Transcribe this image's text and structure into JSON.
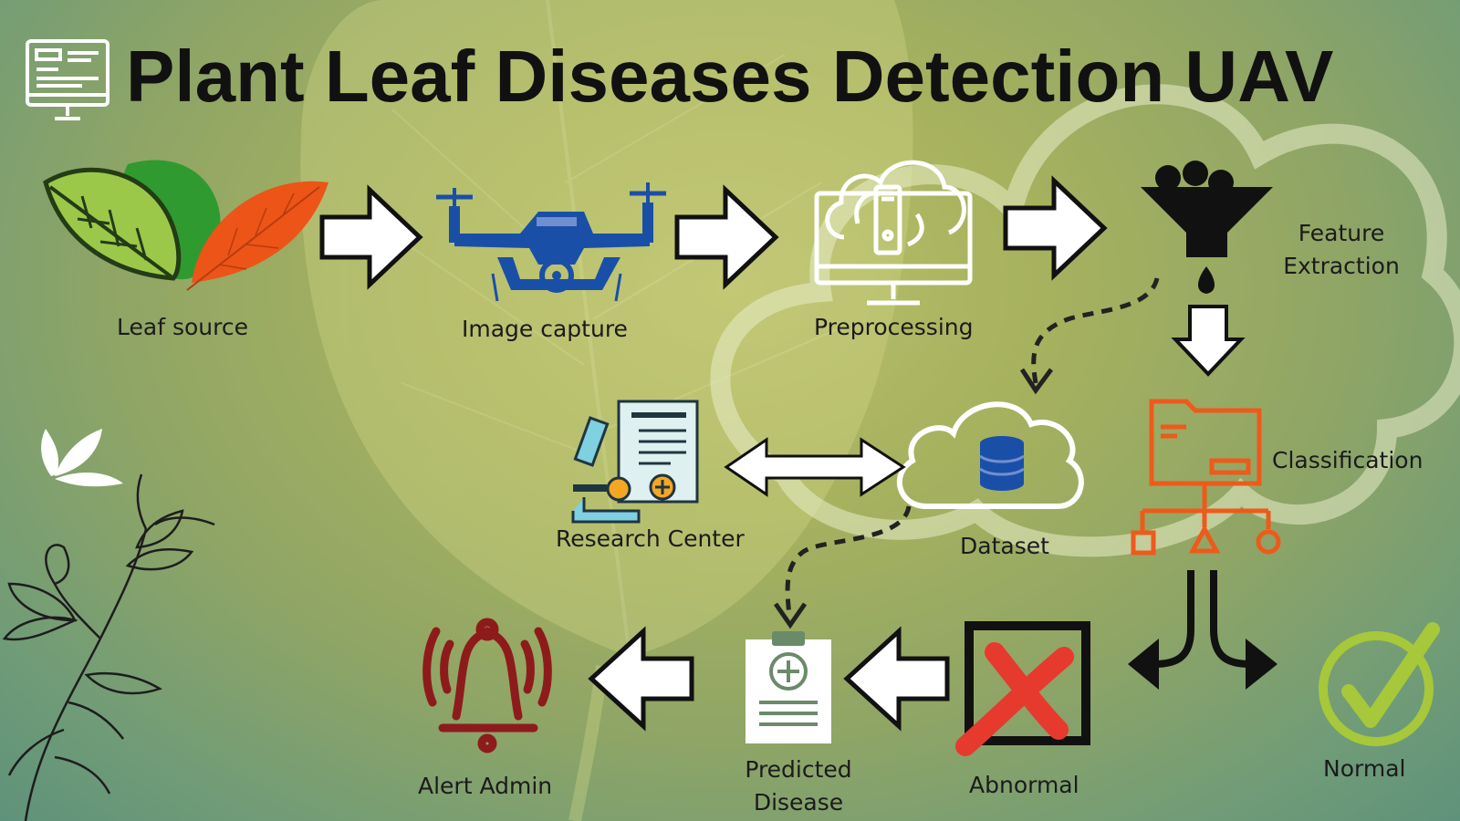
{
  "title": "Plant Leaf Diseases Detection UAV",
  "nodes": {
    "leaf_source": "Leaf source",
    "image_capture": "Image capture",
    "preprocessing": "Preprocessing",
    "feature_extraction_line1": "Feature",
    "feature_extraction_line2": "Extraction",
    "classification": "Classification",
    "dataset": "Dataset",
    "research_center": "Research Center",
    "normal": "Normal",
    "abnormal": "Abnormal",
    "predicted_disease_line1": "Predicted",
    "predicted_disease_line2": "Disease",
    "alert_admin": "Alert Admin"
  },
  "colors": {
    "drone": "#1a4fa8",
    "classification": "#ee5a1c",
    "alert": "#8e1b1b",
    "cross": "#e63a2e",
    "check": "#a6c83a",
    "leaf_orange": "#ec5418",
    "leaf_green": "#2f9a2f"
  },
  "icons": [
    "monitor-icon",
    "leaf-source-icon",
    "drone-icon",
    "cloud-computer-icon",
    "funnel-icon",
    "database-cloud-icon",
    "research-icon",
    "classification-tree-icon",
    "cross-box-icon",
    "check-icon",
    "clipboard-icon",
    "bell-icon",
    "logo-leaf-icon",
    "plant-sprig-icon"
  ]
}
